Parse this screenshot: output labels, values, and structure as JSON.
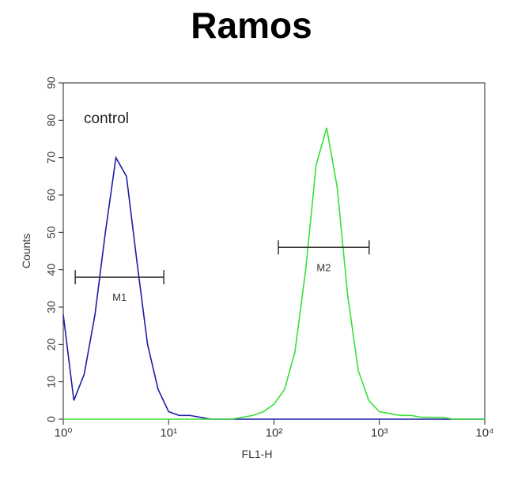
{
  "chart_data": {
    "type": "line",
    "title": "Ramos",
    "xlabel": "FL1-H",
    "ylabel": "Counts",
    "xscale": "log",
    "xlim": [
      1,
      10000
    ],
    "ylim": [
      0,
      90
    ],
    "xticks": [
      {
        "value": 1,
        "label": "10⁰"
      },
      {
        "value": 10,
        "label": "10¹"
      },
      {
        "value": 100,
        "label": "10²"
      },
      {
        "value": 1000,
        "label": "10³"
      },
      {
        "value": 10000,
        "label": "10⁴"
      }
    ],
    "yticks": [
      0,
      10,
      20,
      30,
      40,
      50,
      60,
      70,
      80,
      90
    ],
    "annotations": [
      {
        "text": "control"
      }
    ],
    "markers": [
      {
        "label": "M1",
        "range": [
          1.3,
          9
        ],
        "y": 38
      },
      {
        "label": "M2",
        "range": [
          110,
          800
        ],
        "y": 46
      }
    ],
    "x": [
      1,
      1.26,
      1.58,
      2,
      2.51,
      3.16,
      3.98,
      5.01,
      6.31,
      7.94,
      10,
      12.6,
      15.8,
      20,
      25.1,
      31.6,
      39.8,
      50.1,
      63.1,
      79.4,
      100,
      126,
      158,
      200,
      251,
      316,
      398,
      501,
      631,
      794,
      1000,
      1259,
      1585,
      1995,
      2512,
      3162,
      3981,
      5012,
      6310,
      7943,
      10000
    ],
    "series": [
      {
        "color": "#1c1ca6",
        "values": [
          28,
          5,
          12,
          28,
          50,
          70,
          65,
          42,
          20,
          8,
          2,
          1,
          1,
          0.5,
          0,
          0,
          0,
          0,
          0,
          0,
          0,
          0,
          0,
          0,
          0,
          0,
          0,
          0,
          0,
          0,
          0,
          0,
          0,
          0,
          0,
          0,
          0,
          0,
          0,
          0,
          0
        ]
      },
      {
        "color": "#36e036",
        "values": [
          0,
          0,
          0,
          0,
          0,
          0,
          0,
          0,
          0,
          0,
          0,
          0,
          0,
          0,
          0,
          0,
          0,
          0.5,
          1,
          2,
          4,
          8,
          18,
          40,
          68,
          78,
          62,
          33,
          13,
          5,
          2,
          1.5,
          1,
          1,
          0.5,
          0.5,
          0.5,
          0,
          0,
          0,
          0
        ]
      }
    ]
  }
}
